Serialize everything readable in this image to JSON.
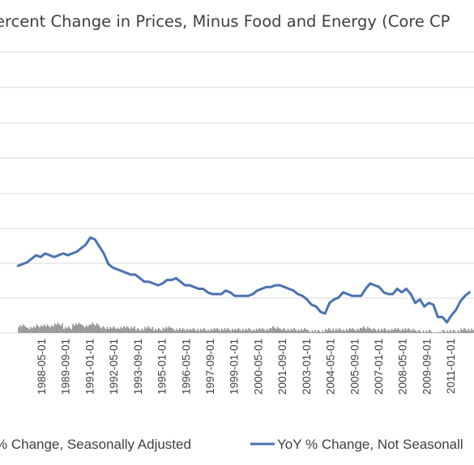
{
  "chart_data": {
    "type": "line",
    "title": "ercent Change in Prices, Minus Food and Energy (Core CP",
    "x_tick_labels": [
      "1988-05-01",
      "1989-09-01",
      "1991-01-01",
      "1992-05-01",
      "1993-09-01",
      "1995-01-01",
      "1996-05-01",
      "1997-09-01",
      "1999-01-01",
      "2000-05-01",
      "2001-09-01",
      "2003-01-01",
      "2004-05-01",
      "2005-09-01",
      "2007-01-01",
      "2008-05-01",
      "2009-09-01",
      "2011-01-01"
    ],
    "grid": true,
    "legend_position": "bottom",
    "series": [
      {
        "name": "% Change, Seasonally Adjusted",
        "style": "bar",
        "color": "#8c8c8c",
        "x": [
          "1987-01",
          "1987-07",
          "1988-01",
          "1988-07",
          "1989-01",
          "1989-07",
          "1990-01",
          "1990-07",
          "1991-01",
          "1991-07",
          "1992-01",
          "1992-07",
          "1993-01",
          "1993-07",
          "1994-01",
          "1994-07",
          "1995-01",
          "1995-07",
          "1996-01",
          "1996-07",
          "1997-01",
          "1997-07",
          "1998-01",
          "1998-07",
          "1999-01",
          "1999-07",
          "2000-01",
          "2000-07",
          "2001-01",
          "2001-07",
          "2002-01",
          "2002-07",
          "2003-01",
          "2003-07",
          "2004-01",
          "2004-07",
          "2005-01",
          "2005-07",
          "2006-01",
          "2006-07",
          "2007-01",
          "2007-07",
          "2008-01",
          "2008-07",
          "2009-01",
          "2009-07",
          "2010-01",
          "2010-07",
          "2011-01",
          "2011-07",
          "2012-01"
        ],
        "values": [
          0.4,
          0.3,
          0.4,
          0.4,
          0.5,
          0.3,
          0.5,
          0.4,
          0.5,
          0.3,
          0.3,
          0.3,
          0.3,
          0.2,
          0.3,
          0.2,
          0.3,
          0.2,
          0.2,
          0.2,
          0.2,
          0.2,
          0.2,
          0.2,
          0.2,
          0.2,
          0.2,
          0.2,
          0.3,
          0.2,
          0.2,
          0.2,
          0.1,
          0.1,
          0.2,
          0.2,
          0.2,
          0.2,
          0.3,
          0.2,
          0.2,
          0.2,
          0.2,
          0.2,
          0.1,
          0.1,
          0.0,
          0.1,
          0.1,
          0.2,
          0.2
        ]
      },
      {
        "name": "YoY % Change, Not Seasonall",
        "style": "line",
        "color": "#4a72b0",
        "x": [
          "1987-01",
          "1987-04",
          "1987-07",
          "1987-10",
          "1988-01",
          "1988-04",
          "1988-07",
          "1988-10",
          "1989-01",
          "1989-04",
          "1989-07",
          "1989-10",
          "1990-01",
          "1990-04",
          "1990-07",
          "1990-10",
          "1991-01",
          "1991-04",
          "1991-07",
          "1991-10",
          "1992-01",
          "1992-04",
          "1992-07",
          "1992-10",
          "1993-01",
          "1993-04",
          "1993-07",
          "1993-10",
          "1994-01",
          "1994-04",
          "1994-07",
          "1994-10",
          "1995-01",
          "1995-04",
          "1995-07",
          "1995-10",
          "1996-01",
          "1996-04",
          "1996-07",
          "1996-10",
          "1997-01",
          "1997-04",
          "1997-07",
          "1997-10",
          "1998-01",
          "1998-04",
          "1998-07",
          "1998-10",
          "1999-01",
          "1999-04",
          "1999-07",
          "1999-10",
          "2000-01",
          "2000-04",
          "2000-07",
          "2000-10",
          "2001-01",
          "2001-04",
          "2001-07",
          "2001-10",
          "2002-01",
          "2002-04",
          "2002-07",
          "2002-10",
          "2003-01",
          "2003-04",
          "2003-07",
          "2003-10",
          "2004-01",
          "2004-04",
          "2004-07",
          "2004-10",
          "2005-01",
          "2005-04",
          "2005-07",
          "2005-10",
          "2006-01",
          "2006-04",
          "2006-07",
          "2006-10",
          "2007-01",
          "2007-04",
          "2007-07",
          "2007-10",
          "2008-01",
          "2008-04",
          "2008-07",
          "2008-10",
          "2009-01",
          "2009-04",
          "2009-07",
          "2009-10",
          "2010-01",
          "2010-04",
          "2010-07",
          "2010-10",
          "2011-01",
          "2011-04",
          "2011-07",
          "2011-10",
          "2012-01"
        ],
        "values": [
          3.8,
          3.9,
          4.0,
          4.2,
          4.4,
          4.3,
          4.5,
          4.4,
          4.3,
          4.4,
          4.5,
          4.4,
          4.5,
          4.6,
          4.8,
          5.0,
          5.4,
          5.3,
          4.9,
          4.5,
          3.9,
          3.7,
          3.6,
          3.5,
          3.4,
          3.3,
          3.3,
          3.1,
          2.9,
          2.9,
          2.8,
          2.7,
          2.8,
          3.0,
          3.0,
          3.1,
          2.9,
          2.7,
          2.7,
          2.6,
          2.5,
          2.5,
          2.3,
          2.2,
          2.2,
          2.2,
          2.4,
          2.3,
          2.1,
          2.1,
          2.1,
          2.1,
          2.2,
          2.4,
          2.5,
          2.6,
          2.6,
          2.7,
          2.7,
          2.6,
          2.5,
          2.4,
          2.2,
          2.1,
          1.9,
          1.6,
          1.5,
          1.2,
          1.1,
          1.7,
          1.9,
          2.0,
          2.3,
          2.2,
          2.1,
          2.1,
          2.1,
          2.5,
          2.8,
          2.7,
          2.6,
          2.3,
          2.2,
          2.2,
          2.5,
          2.3,
          2.5,
          2.2,
          1.7,
          1.9,
          1.5,
          1.7,
          1.6,
          0.9,
          0.9,
          0.6,
          1.0,
          1.3,
          1.8,
          2.1,
          2.3
        ]
      }
    ]
  }
}
